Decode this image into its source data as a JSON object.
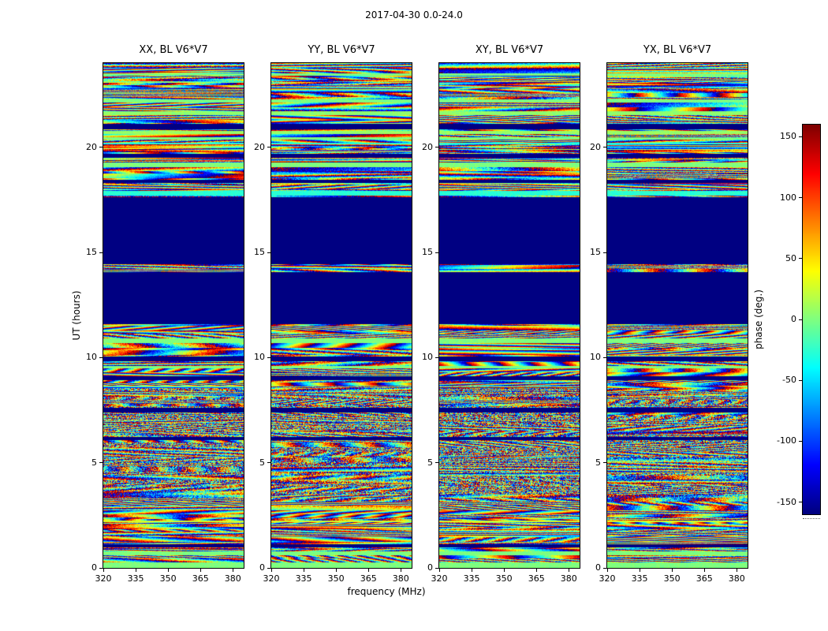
{
  "figure": {
    "title": "2017-04-30 0.0-24.0",
    "background": "#ffffff"
  },
  "panels": [
    {
      "title": "XX, BL V6*V7",
      "seed": 11
    },
    {
      "title": "YY, BL V6*V7",
      "seed": 29
    },
    {
      "title": "XY, BL V6*V7",
      "seed": 47
    },
    {
      "title": "YX, BL V6*V7",
      "seed": 73
    }
  ],
  "axes": {
    "x_label": "frequency (MHz)",
    "y_label": "UT (hours)",
    "x_ticks": [
      "320",
      "335",
      "350",
      "365",
      "380"
    ],
    "x_tick_values": [
      320,
      335,
      350,
      365,
      380
    ],
    "y_ticks": [
      "0",
      "5",
      "10",
      "15",
      "20"
    ],
    "y_tick_values": [
      0,
      5,
      10,
      15,
      20
    ],
    "x_range": [
      320,
      385
    ],
    "y_range": [
      0,
      24
    ]
  },
  "colorbar": {
    "label": "phase (deg.)",
    "ticks": [
      "150",
      "100",
      "50",
      "0",
      "-50",
      "-100",
      "-150"
    ],
    "tick_values": [
      150,
      100,
      50,
      0,
      -50,
      -100,
      -150
    ],
    "display_range": [
      -160,
      160
    ],
    "colormap": "jet",
    "top_color": "#800000",
    "bottom_color": "#000080"
  },
  "chart_data": {
    "type": "heatmap",
    "title": "2017-04-30 0.0-24.0",
    "panels": [
      "XX, BL V6*V7",
      "YY, BL V6*V7",
      "XY, BL V6*V7",
      "YX, BL V6*V7"
    ],
    "xlabel": "frequency (MHz)",
    "ylabel": "UT (hours)",
    "zlabel": "phase (deg.)",
    "x_range_mhz": [
      320,
      385
    ],
    "x_ticks_mhz": [
      320,
      335,
      350,
      365,
      380
    ],
    "y_range_hours": [
      0,
      24
    ],
    "y_ticks_hours": [
      0,
      5,
      10,
      15,
      20
    ],
    "phase_range_deg": [
      -180,
      180
    ],
    "colorbar_ticks_deg": [
      150,
      100,
      50,
      0,
      -50,
      -100,
      -150
    ],
    "colormap": "jet",
    "flagged_time_ranges_ut": [
      [
        7.4,
        7.62
      ],
      [
        9.82,
        10.05
      ],
      [
        11.6,
        14.05
      ],
      [
        14.45,
        17.62
      ],
      [
        18.3,
        18.45
      ],
      [
        19.5,
        19.68
      ],
      [
        20.85,
        21.12
      ]
    ],
    "calm_time_ranges_ut": [
      [
        0,
        0.28
      ]
    ],
    "high_noise_time_range_ut": [
      3.2,
      8.6
    ],
    "description": "Interferometric visibility phase fringes vs frequency and UT for baseline V6*V7 (four correlation products); solid dark-blue bands are flagged / no data."
  }
}
